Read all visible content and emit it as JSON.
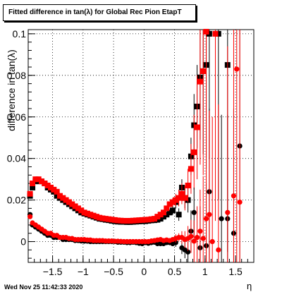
{
  "header": {
    "title": "Fitted difference in tan(λ) for Global Rec Pion EtapT"
  },
  "footer": {
    "timestamp": "Wed Nov 25 11:42:33 2020"
  },
  "chart_data": {
    "type": "scatter",
    "title": "Fitted difference in tan(λ) for Global Rec Pion EtapT",
    "xlabel": "η",
    "ylabel": "difference in tan(λ)",
    "xlim": [
      -1.9,
      1.8
    ],
    "ylim": [
      -0.01,
      0.102
    ],
    "grid": true,
    "xticks": [
      -1.5,
      -1,
      -0.5,
      0,
      0.5,
      1,
      1.5
    ],
    "xtick_labels": [
      "−1.5",
      "−1",
      "−0.5",
      "0",
      "0.5",
      "1",
      "1.5"
    ],
    "yticks": [
      0,
      0.02,
      0.04,
      0.06,
      0.08,
      0.1
    ],
    "ytick_labels": [
      "0",
      "0.02",
      "0.04",
      "0.06",
      "0.08",
      "0.1"
    ],
    "colors": {
      "black": "#000000",
      "red": "#ff0000"
    },
    "series": [
      {
        "marker": "square",
        "color": "#000000",
        "x": [
          -1.87,
          -1.83,
          -1.78,
          -1.73,
          -1.68,
          -1.63,
          -1.58,
          -1.53,
          -1.48,
          -1.43,
          -1.38,
          -1.33,
          -1.28,
          -1.23,
          -1.18,
          -1.13,
          -1.08,
          -1.03,
          -0.98,
          -0.93,
          -0.88,
          -0.83,
          -0.78,
          -0.73,
          -0.68,
          -0.63,
          -0.58,
          -0.53,
          -0.48,
          -0.43,
          -0.38,
          -0.33,
          -0.28,
          -0.23,
          -0.18,
          -0.13,
          -0.08,
          -0.03,
          0.02,
          0.07,
          0.12,
          0.17,
          0.22,
          0.27,
          0.32,
          0.37,
          0.42,
          0.47,
          0.52,
          0.57,
          0.62,
          0.67,
          0.72,
          0.77,
          0.82,
          0.87,
          0.92,
          0.97,
          1.02,
          1.07,
          1.22,
          1.37
        ],
        "y": [
          0.022,
          0.026,
          0.029,
          0.029,
          0.029,
          0.028,
          0.026,
          0.025,
          0.024,
          0.022,
          0.021,
          0.02,
          0.019,
          0.018,
          0.017,
          0.016,
          0.015,
          0.014,
          0.0135,
          0.013,
          0.0125,
          0.012,
          0.0115,
          0.011,
          0.0108,
          0.0105,
          0.0103,
          0.01,
          0.0098,
          0.0096,
          0.0095,
          0.0095,
          0.0094,
          0.0094,
          0.0095,
          0.0096,
          0.0097,
          0.0098,
          0.0098,
          0.01,
          0.0102,
          0.0103,
          0.0105,
          0.011,
          0.012,
          0.013,
          0.014,
          0.015,
          0.019,
          0.013,
          0.026,
          0.021,
          0.02,
          0.041,
          0.056,
          0.065,
          0.079,
          0.082,
          0.085,
          0.1,
          0.1,
          0.085
        ],
        "yerr": [
          0.001,
          0.001,
          0.001,
          0.001,
          0.001,
          0.001,
          0.001,
          0.001,
          0.001,
          0.001,
          0.001,
          0.001,
          0.001,
          0.001,
          0.001,
          0.001,
          0.001,
          0.001,
          0.001,
          0.001,
          0.001,
          0.001,
          0.001,
          0.001,
          0.001,
          0.001,
          0.001,
          0.001,
          0.001,
          0.001,
          0.001,
          0.001,
          0.001,
          0.001,
          0.001,
          0.001,
          0.001,
          0.001,
          0.001,
          0.001,
          0.001,
          0.001,
          0.001,
          0.001,
          0.001,
          0.001,
          0.001,
          0.002,
          0.003,
          0.003,
          0.004,
          0.005,
          0.006,
          0.009,
          0.015,
          0.02,
          0.03,
          0.04,
          0.05,
          0.06,
          0.08,
          0.09
        ]
      },
      {
        "marker": "square",
        "color": "#ff0000",
        "x": [
          -1.87,
          -1.83,
          -1.78,
          -1.73,
          -1.68,
          -1.63,
          -1.58,
          -1.53,
          -1.48,
          -1.43,
          -1.38,
          -1.33,
          -1.28,
          -1.23,
          -1.18,
          -1.13,
          -1.08,
          -1.03,
          -0.98,
          -0.93,
          -0.88,
          -0.83,
          -0.78,
          -0.73,
          -0.68,
          -0.63,
          -0.58,
          -0.53,
          -0.48,
          -0.43,
          -0.38,
          -0.33,
          -0.28,
          -0.23,
          -0.18,
          -0.13,
          -0.08,
          -0.03,
          0.02,
          0.07,
          0.12,
          0.17,
          0.22,
          0.27,
          0.32,
          0.37,
          0.42,
          0.47,
          0.52,
          0.57,
          0.62,
          0.67,
          0.72,
          0.77,
          0.82,
          0.87,
          0.92,
          0.97,
          1.02,
          1.17
        ],
        "y": [
          0.023,
          0.028,
          0.03,
          0.03,
          0.029,
          0.028,
          0.027,
          0.026,
          0.025,
          0.024,
          0.022,
          0.021,
          0.02,
          0.019,
          0.018,
          0.017,
          0.016,
          0.015,
          0.014,
          0.0135,
          0.013,
          0.0125,
          0.012,
          0.0115,
          0.0112,
          0.011,
          0.0108,
          0.0106,
          0.0104,
          0.0102,
          0.0101,
          0.01,
          0.01,
          0.01,
          0.0101,
          0.0102,
          0.0103,
          0.0104,
          0.0105,
          0.0106,
          0.0108,
          0.011,
          0.012,
          0.013,
          0.014,
          0.016,
          0.018,
          0.019,
          0.02,
          0.021,
          0.023,
          0.021,
          0.027,
          0.035,
          0.043,
          0.055,
          0.077,
          0.082,
          0.101,
          0.1
        ],
        "yerr": [
          0.001,
          0.001,
          0.001,
          0.001,
          0.001,
          0.001,
          0.001,
          0.001,
          0.001,
          0.001,
          0.001,
          0.001,
          0.001,
          0.001,
          0.001,
          0.001,
          0.001,
          0.001,
          0.001,
          0.001,
          0.001,
          0.001,
          0.001,
          0.001,
          0.001,
          0.001,
          0.001,
          0.001,
          0.001,
          0.001,
          0.001,
          0.001,
          0.001,
          0.001,
          0.001,
          0.001,
          0.001,
          0.001,
          0.001,
          0.001,
          0.001,
          0.001,
          0.001,
          0.001,
          0.001,
          0.001,
          0.001,
          0.002,
          0.003,
          0.004,
          0.005,
          0.006,
          0.008,
          0.012,
          0.018,
          0.025,
          0.04,
          0.05,
          0.06,
          0.09
        ]
      },
      {
        "marker": "circle",
        "color": "#000000",
        "x": [
          -1.87,
          -1.83,
          -1.78,
          -1.73,
          -1.68,
          -1.63,
          -1.58,
          -1.53,
          -1.48,
          -1.43,
          -1.38,
          -1.33,
          -1.28,
          -1.23,
          -1.18,
          -1.13,
          -1.08,
          -1.03,
          -0.98,
          -0.93,
          -0.88,
          -0.83,
          -0.78,
          -0.73,
          -0.68,
          -0.63,
          -0.58,
          -0.53,
          -0.48,
          -0.43,
          -0.38,
          -0.33,
          -0.28,
          -0.23,
          -0.18,
          -0.13,
          -0.08,
          -0.03,
          0.02,
          0.07,
          0.12,
          0.17,
          0.22,
          0.27,
          0.32,
          0.37,
          0.42,
          0.47,
          0.52,
          0.62,
          0.67,
          0.72,
          0.77,
          0.82,
          0.92,
          1.02,
          1.07,
          1.27,
          1.37,
          1.47,
          1.57
        ],
        "y": [
          0.013,
          0.008,
          0.007,
          0.006,
          0.005,
          0.004,
          0.003,
          0.003,
          0.002,
          0.002,
          0.002,
          0.001,
          0.001,
          0.001,
          0.001,
          0.0005,
          0.0005,
          0.0003,
          0.0002,
          0.0002,
          0.0,
          0.0,
          0.0,
          0.0,
          0.0,
          0.0,
          0.0,
          0.0,
          0.0,
          -0.0003,
          -0.0003,
          -0.0003,
          -0.0005,
          -0.0005,
          -0.0003,
          -0.0005,
          -0.0008,
          -0.001,
          -0.0005,
          -0.0008,
          -0.0005,
          -0.0003,
          -0.001,
          -0.001,
          -0.001,
          -0.0005,
          -0.0005,
          -0.001,
          -0.0005,
          -0.003,
          -0.004,
          -0.005,
          0.005,
          0.014,
          -0.003,
          -0.002,
          0.024,
          0.011,
          0.011,
          0.004,
          0.046
        ],
        "yerr": [
          0.001,
          0.001,
          0.001,
          0.001,
          0.001,
          0.001,
          0.001,
          0.001,
          0.001,
          0.001,
          0.001,
          0.001,
          0.001,
          0.001,
          0.001,
          0.001,
          0.001,
          0.001,
          0.001,
          0.001,
          0.001,
          0.001,
          0.001,
          0.001,
          0.001,
          0.001,
          0.001,
          0.001,
          0.001,
          0.001,
          0.001,
          0.001,
          0.001,
          0.001,
          0.001,
          0.001,
          0.001,
          0.001,
          0.001,
          0.001,
          0.001,
          0.001,
          0.001,
          0.001,
          0.001,
          0.001,
          0.001,
          0.001,
          0.002,
          0.003,
          0.004,
          0.006,
          0.01,
          0.012,
          0.02,
          0.03,
          0.04,
          0.05,
          0.05,
          0.06,
          0.07
        ]
      },
      {
        "marker": "circle",
        "color": "#ff0000",
        "x": [
          -1.87,
          -1.83,
          -1.78,
          -1.73,
          -1.68,
          -1.63,
          -1.58,
          -1.53,
          -1.48,
          -1.43,
          -1.38,
          -1.33,
          -1.28,
          -1.23,
          -1.18,
          -1.13,
          -1.08,
          -1.03,
          -0.98,
          -0.93,
          -0.88,
          -0.83,
          -0.78,
          -0.73,
          -0.68,
          -0.63,
          -0.58,
          -0.53,
          -0.48,
          -0.43,
          -0.38,
          -0.33,
          -0.28,
          -0.23,
          -0.18,
          -0.13,
          -0.08,
          -0.03,
          0.02,
          0.07,
          0.12,
          0.17,
          0.22,
          0.27,
          0.32,
          0.37,
          0.42,
          0.47,
          0.52,
          0.57,
          0.62,
          0.67,
          0.72,
          0.77,
          0.82,
          0.87,
          0.92,
          0.97,
          1.02,
          1.07,
          1.12,
          1.22,
          1.37,
          1.47,
          1.52,
          1.57
        ],
        "y": [
          0.012,
          0.009,
          0.008,
          0.007,
          0.006,
          0.005,
          0.004,
          0.004,
          0.003,
          0.003,
          0.002,
          0.002,
          0.002,
          0.0015,
          0.0015,
          0.001,
          0.001,
          0.001,
          0.001,
          0.0008,
          0.0008,
          0.0005,
          0.0005,
          0.0005,
          0.0005,
          0.0003,
          0.0003,
          0.0003,
          0.0002,
          0.0002,
          0.0001,
          0.0,
          0.0,
          0.0,
          0.0,
          0.0,
          0.0,
          0.0,
          0.0,
          0.0,
          0.0003,
          0.0005,
          0.0008,
          0.001,
          0.0005,
          0.0008,
          0.0005,
          0.001,
          0.0015,
          0.002,
          0.002,
          0.001,
          0.0015,
          0.0025,
          0.0002,
          0.002,
          0.005,
          0.0015,
          0.011,
          0.013,
          0.0,
          -0.004,
          0.014,
          0.022,
          0.083,
          0.019
        ],
        "yerr": [
          0.001,
          0.001,
          0.001,
          0.001,
          0.001,
          0.001,
          0.001,
          0.001,
          0.001,
          0.001,
          0.001,
          0.001,
          0.001,
          0.001,
          0.001,
          0.001,
          0.001,
          0.001,
          0.001,
          0.001,
          0.001,
          0.001,
          0.001,
          0.001,
          0.001,
          0.001,
          0.001,
          0.001,
          0.001,
          0.001,
          0.001,
          0.001,
          0.001,
          0.001,
          0.001,
          0.001,
          0.001,
          0.001,
          0.001,
          0.001,
          0.001,
          0.001,
          0.001,
          0.001,
          0.001,
          0.001,
          0.001,
          0.001,
          0.002,
          0.002,
          0.003,
          0.004,
          0.006,
          0.008,
          0.01,
          0.015,
          0.02,
          0.03,
          0.04,
          0.05,
          0.06,
          0.07,
          0.08,
          0.09,
          0.1,
          0.09
        ]
      }
    ]
  }
}
